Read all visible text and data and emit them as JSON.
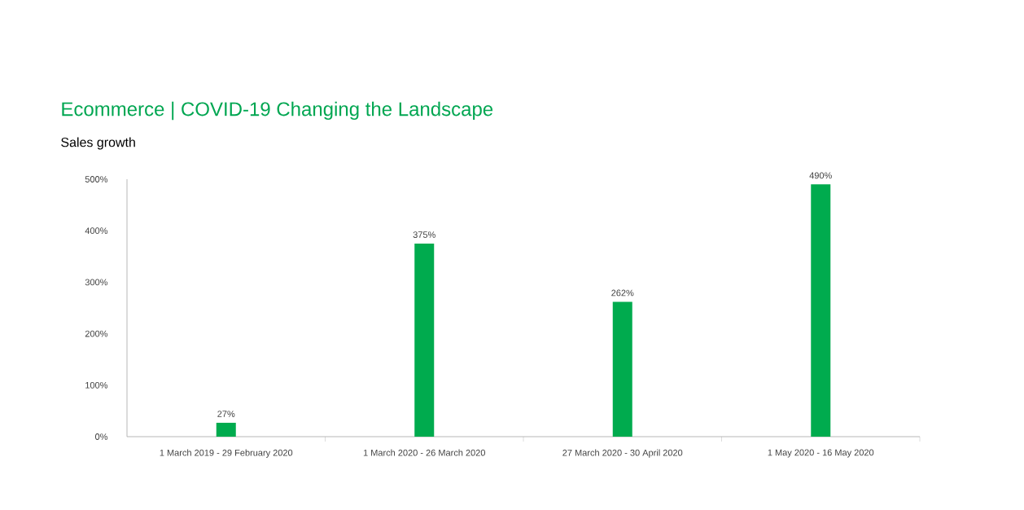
{
  "chart_data": {
    "type": "bar",
    "title": "Ecommerce | COVID-19 Changing the Landscape",
    "ylabel": "Sales growth",
    "categories": [
      "1 March 2019 - 29 February 2020",
      "1 March 2020 - 26 March 2020",
      "27 March 2020 - 30 April 2020",
      "1 May 2020 - 16 May 2020"
    ],
    "values": [
      27,
      375,
      262,
      490
    ],
    "value_labels": [
      "27%",
      "375%",
      "262%",
      "490%"
    ],
    "color": "#00ab4e",
    "ylim": [
      0,
      500
    ],
    "yticks": [
      {
        "value": 0,
        "label": "0%"
      },
      {
        "value": 100,
        "label": "100%"
      },
      {
        "value": 200,
        "label": "200%"
      },
      {
        "value": 300,
        "label": "300%"
      },
      {
        "value": 400,
        "label": "400%"
      },
      {
        "value": 500,
        "label": "500%"
      }
    ]
  }
}
